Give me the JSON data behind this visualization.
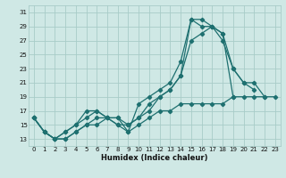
{
  "xlabel": "Humidex (Indice chaleur)",
  "xlim": [
    -0.5,
    23.5
  ],
  "ylim": [
    12,
    32
  ],
  "yticks": [
    13,
    15,
    17,
    19,
    21,
    23,
    25,
    27,
    29,
    31
  ],
  "xticks": [
    0,
    1,
    2,
    3,
    4,
    5,
    6,
    7,
    8,
    9,
    10,
    11,
    12,
    13,
    14,
    15,
    16,
    17,
    18,
    19,
    20,
    21,
    22,
    23
  ],
  "background_color": "#cfe8e5",
  "grid_color": "#a8ccc8",
  "line_color": "#1e7070",
  "lines": [
    {
      "x": [
        0,
        1,
        2,
        3,
        4,
        5,
        6,
        7,
        8,
        9,
        10,
        11,
        12,
        13,
        14,
        15,
        16,
        17,
        18,
        19
      ],
      "y": [
        16,
        14,
        13,
        14,
        15,
        17,
        17,
        16,
        16,
        14,
        18,
        19,
        20,
        21,
        24,
        30,
        30,
        29,
        28,
        19
      ]
    },
    {
      "x": [
        0,
        1,
        2,
        3,
        4,
        5,
        6,
        7,
        8,
        9,
        10,
        11,
        12,
        13,
        14,
        15,
        16,
        17,
        18,
        19,
        20,
        21
      ],
      "y": [
        16,
        14,
        13,
        14,
        15,
        16,
        17,
        16,
        16,
        15,
        16,
        17,
        19,
        20,
        22,
        30,
        29,
        29,
        28,
        23,
        21,
        20
      ]
    },
    {
      "x": [
        0,
        1,
        2,
        3,
        4,
        5,
        6,
        7,
        8,
        9,
        10,
        11,
        12,
        13,
        14,
        15,
        16,
        17,
        18,
        19,
        20,
        21,
        22
      ],
      "y": [
        16,
        14,
        13,
        13,
        14,
        15,
        16,
        16,
        15,
        15,
        16,
        18,
        19,
        20,
        22,
        27,
        28,
        29,
        27,
        23,
        21,
        21,
        19
      ]
    },
    {
      "x": [
        0,
        1,
        2,
        3,
        4,
        5,
        6,
        7,
        8,
        9,
        10,
        11,
        12,
        13,
        14,
        15,
        16,
        17,
        18,
        19,
        20,
        21,
        22,
        23
      ],
      "y": [
        16,
        14,
        13,
        13,
        14,
        15,
        15,
        16,
        15,
        14,
        15,
        16,
        17,
        17,
        18,
        18,
        18,
        18,
        18,
        19,
        19,
        19,
        19,
        19
      ]
    }
  ]
}
